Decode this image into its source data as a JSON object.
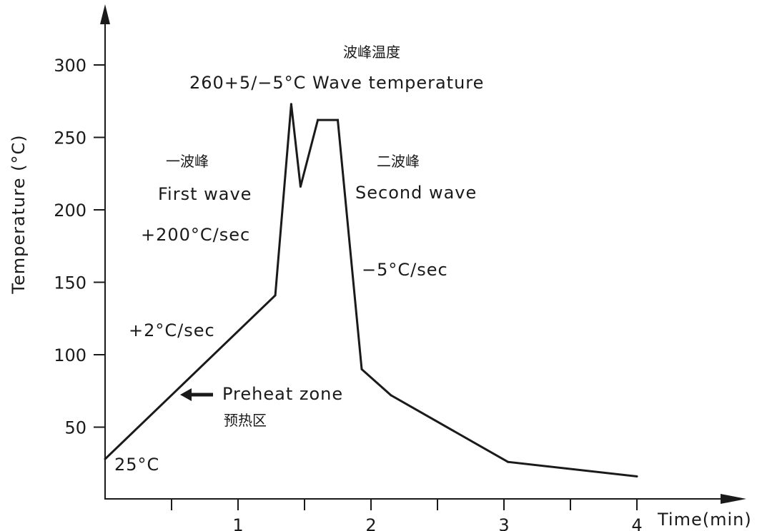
{
  "chart_data": {
    "type": "line",
    "title": "",
    "xlabel": "Time(min)",
    "ylabel": "Temperature (°C)",
    "xlim": [
      0,
      4.5
    ],
    "ylim": [
      0,
      300
    ],
    "x_ticks": [
      1,
      2,
      3,
      4
    ],
    "x_tick_labels": [
      "1",
      "2",
      "3",
      "4"
    ],
    "x_minor_ticks": [
      0.5,
      1.5,
      2.5,
      3.5
    ],
    "y_ticks": [
      50,
      100,
      150,
      200,
      250,
      300
    ],
    "y_tick_labels": [
      "50",
      "100",
      "150",
      "200",
      "250",
      "300"
    ],
    "grid": false,
    "legend": "none",
    "line_color": "#1a1a1a",
    "series": [
      {
        "x": [
          0,
          1.28,
          1.4,
          1.47,
          1.6,
          1.75,
          1.93,
          2.15,
          3.03,
          4.0
        ],
        "values": [
          28,
          141,
          273,
          216,
          262,
          262,
          90,
          72,
          26,
          16
        ]
      }
    ],
    "annotations": [
      {
        "id": "wave_cn",
        "text": "波峰温度",
        "x": 2.0,
        "y": 301
      },
      {
        "id": "wave_temp",
        "text": "260+5/−5°C Wave temperature",
        "x": 2.0,
        "y": 281
      },
      {
        "id": "first_cn",
        "text": "一波峰",
        "x": 0.6,
        "y": 230
      },
      {
        "id": "first_wave",
        "text": "First wave",
        "x": 0.8,
        "y": 208
      },
      {
        "id": "second_cn",
        "text": "二波峰",
        "x": 2.1,
        "y": 230
      },
      {
        "id": "second_wave",
        "text": "Second wave",
        "x": 1.8,
        "y": 208
      },
      {
        "id": "rate_fast",
        "text": "+200°C/sec",
        "x": 0.27,
        "y": 180
      },
      {
        "id": "rate_cool",
        "text": "−5°C/sec",
        "x": 1.95,
        "y": 155
      },
      {
        "id": "rate_slow",
        "text": "+2°C/sec",
        "x": 0.18,
        "y": 113
      },
      {
        "id": "preheat",
        "text": "Preheat zone",
        "x": 0.9,
        "y": 69
      },
      {
        "id": "preheat_cn",
        "text": "预热区",
        "x": 0.9,
        "y": 49
      },
      {
        "id": "start_temp",
        "text": "25°C",
        "x": 0.08,
        "y": 13
      }
    ]
  }
}
